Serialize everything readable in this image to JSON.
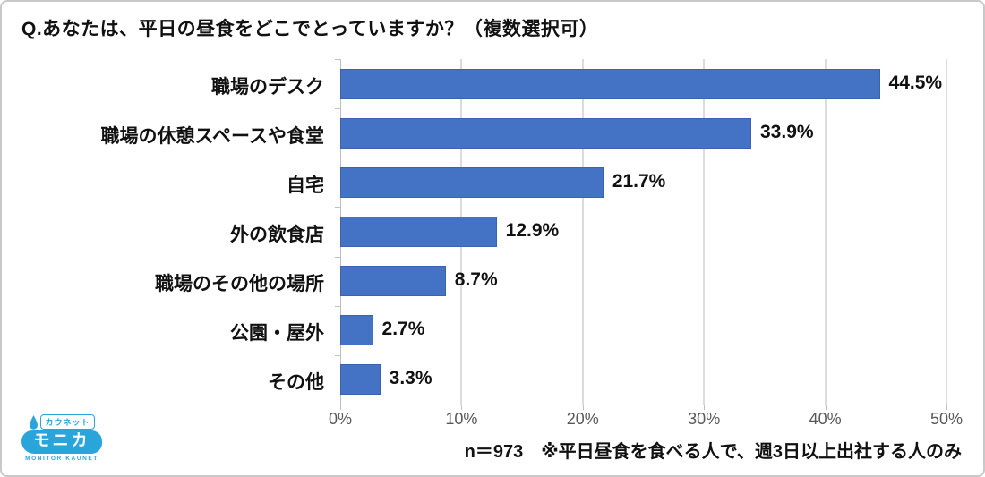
{
  "title": "Q.あなたは、平日の昼食をどこでとっていますか？（複数選択可）",
  "chart_data": {
    "type": "bar",
    "orientation": "horizontal",
    "title": "Q.あなたは、平日の昼食をどこでとっていますか？（複数選択可）",
    "categories": [
      "職場のデスク",
      "職場の休憩スペースや食堂",
      "自宅",
      "外の飲食店",
      "職場のその他の場所",
      "公園・屋外",
      "その他"
    ],
    "values": [
      44.5,
      33.9,
      21.7,
      12.9,
      8.7,
      2.7,
      3.3
    ],
    "value_labels": [
      "44.5%",
      "33.9%",
      "21.7%",
      "12.9%",
      "8.7%",
      "2.7%",
      "3.3%"
    ],
    "xlim": [
      0,
      50
    ],
    "x_tick_values": [
      0,
      10,
      20,
      30,
      40,
      50
    ],
    "x_tick_labels": [
      "0%",
      "10%",
      "20%",
      "30%",
      "40%",
      "50%"
    ],
    "grid": true,
    "legend": false,
    "bar_color": "#4472c4",
    "gridline_color": "#dcdcdc"
  },
  "footnote": "n＝973　※平日昼食を食べる人で、週3日以上出社する人のみ",
  "logo": {
    "top_text": "カウネット",
    "main_text": "モニカ",
    "bottom_text": "MONITOR KAUNET",
    "color": "#29a5dc"
  }
}
